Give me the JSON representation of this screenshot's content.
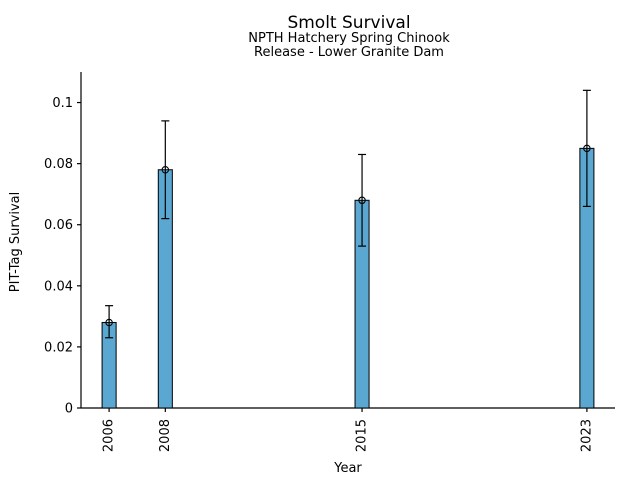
{
  "chart_data": {
    "type": "bar",
    "title": "Smolt Survival",
    "subtitle_line1": "NPTH Hatchery Spring Chinook",
    "subtitle_line2": "Release - Lower Granite Dam",
    "xlabel": "Year",
    "ylabel": "PIT-Tag Survival",
    "categories": [
      2006,
      2008,
      2015,
      2023
    ],
    "xtick_labels": [
      "2006",
      "2008",
      "2015",
      "2023"
    ],
    "values": [
      0.028,
      0.078,
      0.068,
      0.085
    ],
    "error_low": [
      0.023,
      0.062,
      0.053,
      0.066
    ],
    "error_high": [
      0.0335,
      0.094,
      0.083,
      0.104
    ],
    "marker": "open-circle",
    "bar_color": "#5AA7D1",
    "bar_edge_color": "#000000",
    "error_color": "#000000",
    "background_color": "#FFFFFF",
    "xlim": [
      2005,
      2024
    ],
    "ylim": [
      0,
      0.11
    ],
    "yticks": [
      0,
      0.02,
      0.04,
      0.06,
      0.08,
      0.1
    ],
    "ytick_labels": [
      "0",
      "0.02",
      "0.04",
      "0.06",
      "0.08",
      "0.1"
    ],
    "xtick_rotation_deg": 90,
    "bar_width_years": 0.5,
    "grid": false,
    "legend": null
  }
}
